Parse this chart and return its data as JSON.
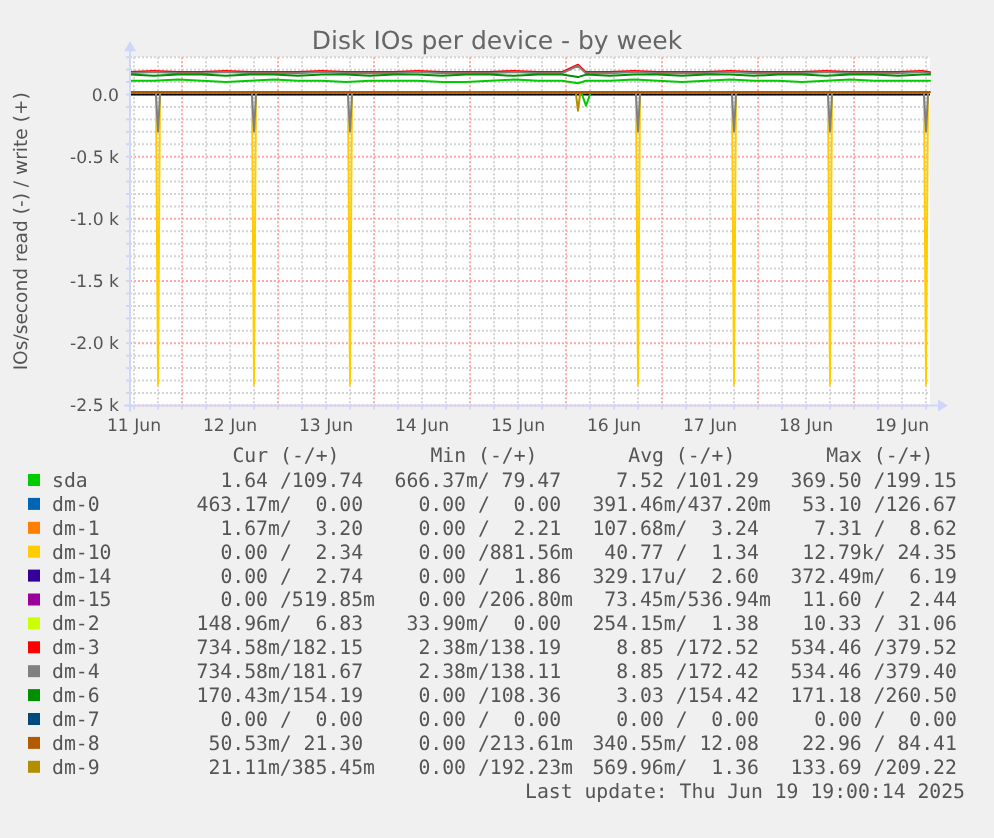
{
  "chart_data": {
    "type": "line",
    "title": "Disk IOs per device - by week",
    "ylabel": "IOs/second read (-) / write (+)",
    "xlim": [
      "2025-06-11T11:00",
      "2025-06-19T19:00"
    ],
    "xticks": [
      {
        "value": "2025-06-11T12:00",
        "label": "11 Jun"
      },
      {
        "value": "2025-06-11T18:00",
        "label": null
      },
      {
        "value": "2025-06-12T00:00",
        "label": null
      },
      {
        "value": "2025-06-12T06:00",
        "label": null
      },
      {
        "value": "2025-06-12T12:00",
        "label": "12 Jun"
      },
      {
        "value": "2025-06-12T18:00",
        "label": null
      },
      {
        "value": "2025-06-13T00:00",
        "label": null
      },
      {
        "value": "2025-06-13T06:00",
        "label": null
      },
      {
        "value": "2025-06-13T12:00",
        "label": "13 Jun"
      },
      {
        "value": "2025-06-13T18:00",
        "label": null
      },
      {
        "value": "2025-06-14T00:00",
        "label": null
      },
      {
        "value": "2025-06-14T06:00",
        "label": null
      },
      {
        "value": "2025-06-14T12:00",
        "label": "14 Jun"
      },
      {
        "value": "2025-06-14T18:00",
        "label": null
      },
      {
        "value": "2025-06-15T00:00",
        "label": null
      },
      {
        "value": "2025-06-15T06:00",
        "label": null
      },
      {
        "value": "2025-06-15T12:00",
        "label": "15 Jun"
      },
      {
        "value": "2025-06-15T18:00",
        "label": null
      },
      {
        "value": "2025-06-16T00:00",
        "label": null
      },
      {
        "value": "2025-06-16T06:00",
        "label": null
      },
      {
        "value": "2025-06-16T12:00",
        "label": "16 Jun"
      },
      {
        "value": "2025-06-16T18:00",
        "label": null
      },
      {
        "value": "2025-06-17T00:00",
        "label": null
      },
      {
        "value": "2025-06-17T06:00",
        "label": null
      },
      {
        "value": "2025-06-17T12:00",
        "label": "17 Jun"
      },
      {
        "value": "2025-06-17T18:00",
        "label": null
      },
      {
        "value": "2025-06-18T00:00",
        "label": null
      },
      {
        "value": "2025-06-18T06:00",
        "label": null
      },
      {
        "value": "2025-06-18T12:00",
        "label": "18 Jun"
      },
      {
        "value": "2025-06-18T18:00",
        "label": null
      },
      {
        "value": "2025-06-19T00:00",
        "label": null
      },
      {
        "value": "2025-06-19T06:00",
        "label": null
      },
      {
        "value": "2025-06-19T12:00",
        "label": "19 Jun"
      },
      {
        "value": "2025-06-19T18:00",
        "label": null
      }
    ],
    "ylim": [
      -2500,
      300
    ],
    "yticks": [
      {
        "value": -2500,
        "label": "-2.5 k"
      },
      {
        "value": -2400,
        "label": null
      },
      {
        "value": -2300,
        "label": null
      },
      {
        "value": -2200,
        "label": null
      },
      {
        "value": -2100,
        "label": null
      },
      {
        "value": -2000,
        "label": "-2.0 k"
      },
      {
        "value": -1900,
        "label": null
      },
      {
        "value": -1800,
        "label": null
      },
      {
        "value": -1700,
        "label": null
      },
      {
        "value": -1600,
        "label": null
      },
      {
        "value": -1500,
        "label": "-1.5 k"
      },
      {
        "value": -1400,
        "label": null
      },
      {
        "value": -1300,
        "label": null
      },
      {
        "value": -1200,
        "label": null
      },
      {
        "value": -1100,
        "label": null
      },
      {
        "value": -1000,
        "label": "-1.0 k"
      },
      {
        "value": -900,
        "label": null
      },
      {
        "value": -800,
        "label": null
      },
      {
        "value": -700,
        "label": null
      },
      {
        "value": -600,
        "label": null
      },
      {
        "value": -500,
        "label": "-0.5 k"
      },
      {
        "value": -400,
        "label": null
      },
      {
        "value": -300,
        "label": null
      },
      {
        "value": -200,
        "label": null
      },
      {
        "value": -100,
        "label": null
      },
      {
        "value": 0,
        "label": "0.0"
      },
      {
        "value": 100,
        "label": null
      },
      {
        "value": 200,
        "label": null
      },
      {
        "value": 300,
        "label": null
      }
    ],
    "grid": true,
    "legend": "bottom",
    "x": [
      "2025-06-11T11:00",
      "2025-06-11T17:00",
      "2025-06-11T23:00",
      "2025-06-12T05:00",
      "2025-06-12T11:00",
      "2025-06-12T17:00",
      "2025-06-12T23:00",
      "2025-06-13T05:00",
      "2025-06-13T11:00",
      "2025-06-13T17:00",
      "2025-06-13T23:00",
      "2025-06-14T05:00",
      "2025-06-14T11:00",
      "2025-06-14T17:00",
      "2025-06-14T23:00",
      "2025-06-15T05:00",
      "2025-06-15T11:00",
      "2025-06-15T17:00",
      "2025-06-15T23:00",
      "2025-06-16T03:00",
      "2025-06-16T05:00",
      "2025-06-16T11:00",
      "2025-06-16T17:00",
      "2025-06-16T23:00",
      "2025-06-17T05:00",
      "2025-06-17T11:00",
      "2025-06-17T17:00",
      "2025-06-17T23:00",
      "2025-06-18T05:00",
      "2025-06-18T11:00",
      "2025-06-18T17:00",
      "2025-06-18T23:00",
      "2025-06-19T05:00",
      "2025-06-19T11:00",
      "2025-06-19T17:00",
      "2025-06-19T19:00"
    ],
    "series": [
      {
        "name": "sda",
        "color": "#00cc00",
        "values": [
          110,
          110,
          120,
          110,
          100,
          110,
          120,
          110,
          110,
          100,
          110,
          110,
          110,
          100,
          100,
          110,
          120,
          110,
          110,
          90,
          110,
          110,
          120,
          110,
          100,
          110,
          120,
          110,
          110,
          100,
          110,
          120,
          110,
          110,
          110,
          110
        ]
      },
      {
        "color": "#00cc00",
        "x": [
          "2025-06-16T04:00",
          "2025-06-16T05:00",
          "2025-06-16T06:00"
        ],
        "values": [
          0,
          -90,
          0
        ]
      },
      {
        "name": "dm-0",
        "color": "#0066b3",
        "values": [
          null,
          null,
          null,
          null,
          null,
          null,
          null,
          null,
          null,
          null,
          null,
          null,
          null,
          null,
          null,
          null,
          null,
          null,
          null,
          null,
          null,
          null,
          null,
          null,
          null,
          null,
          null,
          null,
          null,
          null,
          null,
          null,
          null,
          null,
          null,
          null
        ]
      },
      {
        "name": "dm-1",
        "color": "#ff8000",
        "values": [
          null,
          null,
          null,
          null,
          null,
          null,
          null,
          null,
          null,
          null,
          null,
          null,
          null,
          null,
          null,
          null,
          null,
          null,
          null,
          null,
          null,
          null,
          null,
          null,
          null,
          null,
          null,
          null,
          null,
          null,
          null,
          null,
          null,
          null,
          null,
          null
        ]
      },
      {
        "name": "dm-10",
        "color": "#ffcc00",
        "x": [
          "2025-06-11T17:30",
          "2025-06-11T18:00",
          "2025-06-11T18:30"
        ],
        "values": [
          0,
          -2330,
          0
        ]
      },
      {
        "color": "#ffcc00",
        "x": [
          "2025-06-12T17:30",
          "2025-06-12T18:00",
          "2025-06-12T18:30"
        ],
        "values": [
          0,
          -2330,
          0
        ]
      },
      {
        "color": "#ffcc00",
        "x": [
          "2025-06-13T17:30",
          "2025-06-13T18:00",
          "2025-06-13T18:30"
        ],
        "values": [
          0,
          -2330,
          0
        ]
      },
      {
        "color": "#ffcc00",
        "x": [
          "2025-06-16T17:30",
          "2025-06-16T18:00",
          "2025-06-16T18:30"
        ],
        "values": [
          0,
          -2330,
          0
        ]
      },
      {
        "color": "#ffcc00",
        "x": [
          "2025-06-17T17:30",
          "2025-06-17T18:00",
          "2025-06-17T18:30"
        ],
        "values": [
          0,
          -2330,
          0
        ]
      },
      {
        "color": "#ffcc00",
        "x": [
          "2025-06-18T17:30",
          "2025-06-18T18:00",
          "2025-06-18T18:30"
        ],
        "values": [
          0,
          -2330,
          0
        ]
      },
      {
        "color": "#ffcc00",
        "x": [
          "2025-06-19T17:30",
          "2025-06-19T18:00",
          "2025-06-19T18:30"
        ],
        "values": [
          0,
          -2330,
          0
        ]
      },
      {
        "name": "dm-14",
        "color": "#330099",
        "values": [
          null,
          null,
          null,
          null,
          null,
          null,
          null,
          null,
          null,
          null,
          null,
          null,
          null,
          null,
          null,
          null,
          null,
          null,
          null,
          null,
          null,
          null,
          null,
          null,
          null,
          null,
          null,
          null,
          null,
          null,
          null,
          null,
          null,
          null,
          null,
          null
        ]
      },
      {
        "name": "dm-15",
        "color": "#990099",
        "values": [
          null,
          null,
          null,
          null,
          null,
          null,
          null,
          null,
          null,
          null,
          null,
          null,
          null,
          null,
          null,
          null,
          null,
          null,
          null,
          null,
          null,
          null,
          null,
          null,
          null,
          null,
          null,
          null,
          null,
          null,
          null,
          null,
          null,
          null,
          null,
          null
        ]
      },
      {
        "name": "dm-2",
        "color": "#ccff00",
        "values": [
          null,
          null,
          null,
          null,
          null,
          null,
          null,
          null,
          null,
          null,
          null,
          null,
          null,
          null,
          null,
          null,
          null,
          null,
          null,
          null,
          null,
          null,
          null,
          null,
          null,
          null,
          null,
          null,
          null,
          null,
          null,
          null,
          null,
          null,
          null,
          null
        ]
      },
      {
        "name": "dm-3",
        "color": "#ff0000",
        "values": [
          180,
          190,
          180,
          180,
          190,
          180,
          180,
          180,
          190,
          180,
          180,
          180,
          190,
          180,
          180,
          180,
          190,
          180,
          180,
          240,
          180,
          180,
          190,
          180,
          180,
          180,
          190,
          180,
          180,
          180,
          190,
          180,
          180,
          180,
          190,
          180
        ]
      },
      {
        "name": "dm-4",
        "color": "#808080",
        "values": [
          170,
          180,
          170,
          170,
          180,
          170,
          170,
          170,
          180,
          170,
          170,
          170,
          180,
          170,
          170,
          170,
          180,
          170,
          170,
          230,
          170,
          170,
          180,
          170,
          170,
          170,
          180,
          170,
          170,
          170,
          180,
          170,
          170,
          170,
          180,
          170
        ]
      },
      {
        "color": "#808080",
        "x": [
          "2025-06-11T17:30",
          "2025-06-11T18:00",
          "2025-06-11T18:30"
        ],
        "values": [
          0,
          -300,
          0
        ]
      },
      {
        "color": "#808080",
        "x": [
          "2025-06-12T17:30",
          "2025-06-12T18:00",
          "2025-06-12T18:30"
        ],
        "values": [
          0,
          -300,
          0
        ]
      },
      {
        "color": "#808080",
        "x": [
          "2025-06-13T17:30",
          "2025-06-13T18:00",
          "2025-06-13T18:30"
        ],
        "values": [
          0,
          -300,
          0
        ]
      },
      {
        "color": "#808080",
        "x": [
          "2025-06-16T17:30",
          "2025-06-16T18:00",
          "2025-06-16T18:30"
        ],
        "values": [
          0,
          -300,
          0
        ]
      },
      {
        "color": "#808080",
        "x": [
          "2025-06-17T17:30",
          "2025-06-17T18:00",
          "2025-06-17T18:30"
        ],
        "values": [
          0,
          -300,
          0
        ]
      },
      {
        "color": "#808080",
        "x": [
          "2025-06-18T17:30",
          "2025-06-18T18:00",
          "2025-06-18T18:30"
        ],
        "values": [
          0,
          -300,
          0
        ]
      },
      {
        "color": "#808080",
        "x": [
          "2025-06-19T17:30",
          "2025-06-19T18:00",
          "2025-06-19T18:30"
        ],
        "values": [
          0,
          -300,
          0
        ]
      },
      {
        "name": "dm-6",
        "color": "#008f00",
        "values": [
          160,
          150,
          160,
          160,
          150,
          160,
          160,
          150,
          160,
          160,
          150,
          160,
          160,
          150,
          160,
          160,
          150,
          160,
          160,
          140,
          160,
          150,
          160,
          160,
          150,
          160,
          160,
          150,
          160,
          160,
          150,
          160,
          160,
          150,
          160,
          160
        ]
      },
      {
        "name": "dm-7",
        "color": "#00487d",
        "values": [
          null,
          null,
          null,
          null,
          null,
          null,
          null,
          null,
          null,
          null,
          null,
          null,
          null,
          null,
          null,
          null,
          null,
          null,
          null,
          null,
          null,
          null,
          null,
          null,
          null,
          null,
          null,
          null,
          null,
          null,
          null,
          null,
          null,
          null,
          null,
          null
        ]
      },
      {
        "name": "dm-8",
        "color": "#b35a00",
        "x": [
          "2025-06-11T11:00",
          "2025-06-19T19:00"
        ],
        "values": [
          20,
          20
        ]
      },
      {
        "name": "dm-9",
        "color": "#b38f00",
        "x": [
          "2025-06-16T02:30",
          "2025-06-16T03:00",
          "2025-06-16T03:30"
        ],
        "values": [
          0,
          -130,
          0
        ]
      }
    ],
    "ref_lines": [
      {
        "axis": "y",
        "value": 0,
        "color": "#000000"
      }
    ],
    "annotations": [
      "Cur (-/+)",
      "Min (-/+)",
      "Avg (-/+)",
      "Max (-/+)",
      "1.64 /109.74",
      "666.37m/ 79.47",
      "7.52 /101.29",
      "369.50 /199.15",
      "463.17m/  0.00",
      "0.00 /  0.00",
      "391.46m/437.20m",
      "53.10 /126.67",
      "1.67m/  3.20",
      "0.00 /  2.21",
      "107.68m/  3.24",
      "7.31 /  8.62",
      "0.00 /  2.34",
      "0.00 /881.56m",
      "40.77 /  1.34",
      "12.79k/ 24.35",
      "0.00 /  2.74",
      "0.00 /  1.86",
      "329.17u/  2.60",
      "372.49m/  6.19",
      "0.00 /519.85m",
      "0.00 /206.80m",
      "73.45m/536.94m",
      "11.60 /  2.44",
      "148.96m/  6.83",
      "33.90m/  0.00",
      "254.15m/  1.38",
      "10.33 / 31.06",
      "734.58m/182.15",
      "2.38m/138.19",
      "8.85 /172.52",
      "534.46 /379.52",
      "734.58m/181.67",
      "2.38m/138.11",
      "8.85 /172.42",
      "534.46 /379.40",
      "170.43m/154.19",
      "0.00 /108.36",
      "3.03 /154.42",
      "171.18 /260.50",
      "0.00 /  0.00",
      "0.00 /  0.00",
      "0.00 /  0.00",
      "0.00 /  0.00",
      "50.53m/ 21.30",
      "0.00 /213.61m",
      "340.55m/ 12.08",
      "22.96 / 84.41",
      "21.11m/385.45m",
      "0.00 /192.23m",
      "569.96m/  1.36",
      "133.69 /209.22",
      "Last update: Thu Jun 19 19:00:14 2025"
    ]
  }
}
